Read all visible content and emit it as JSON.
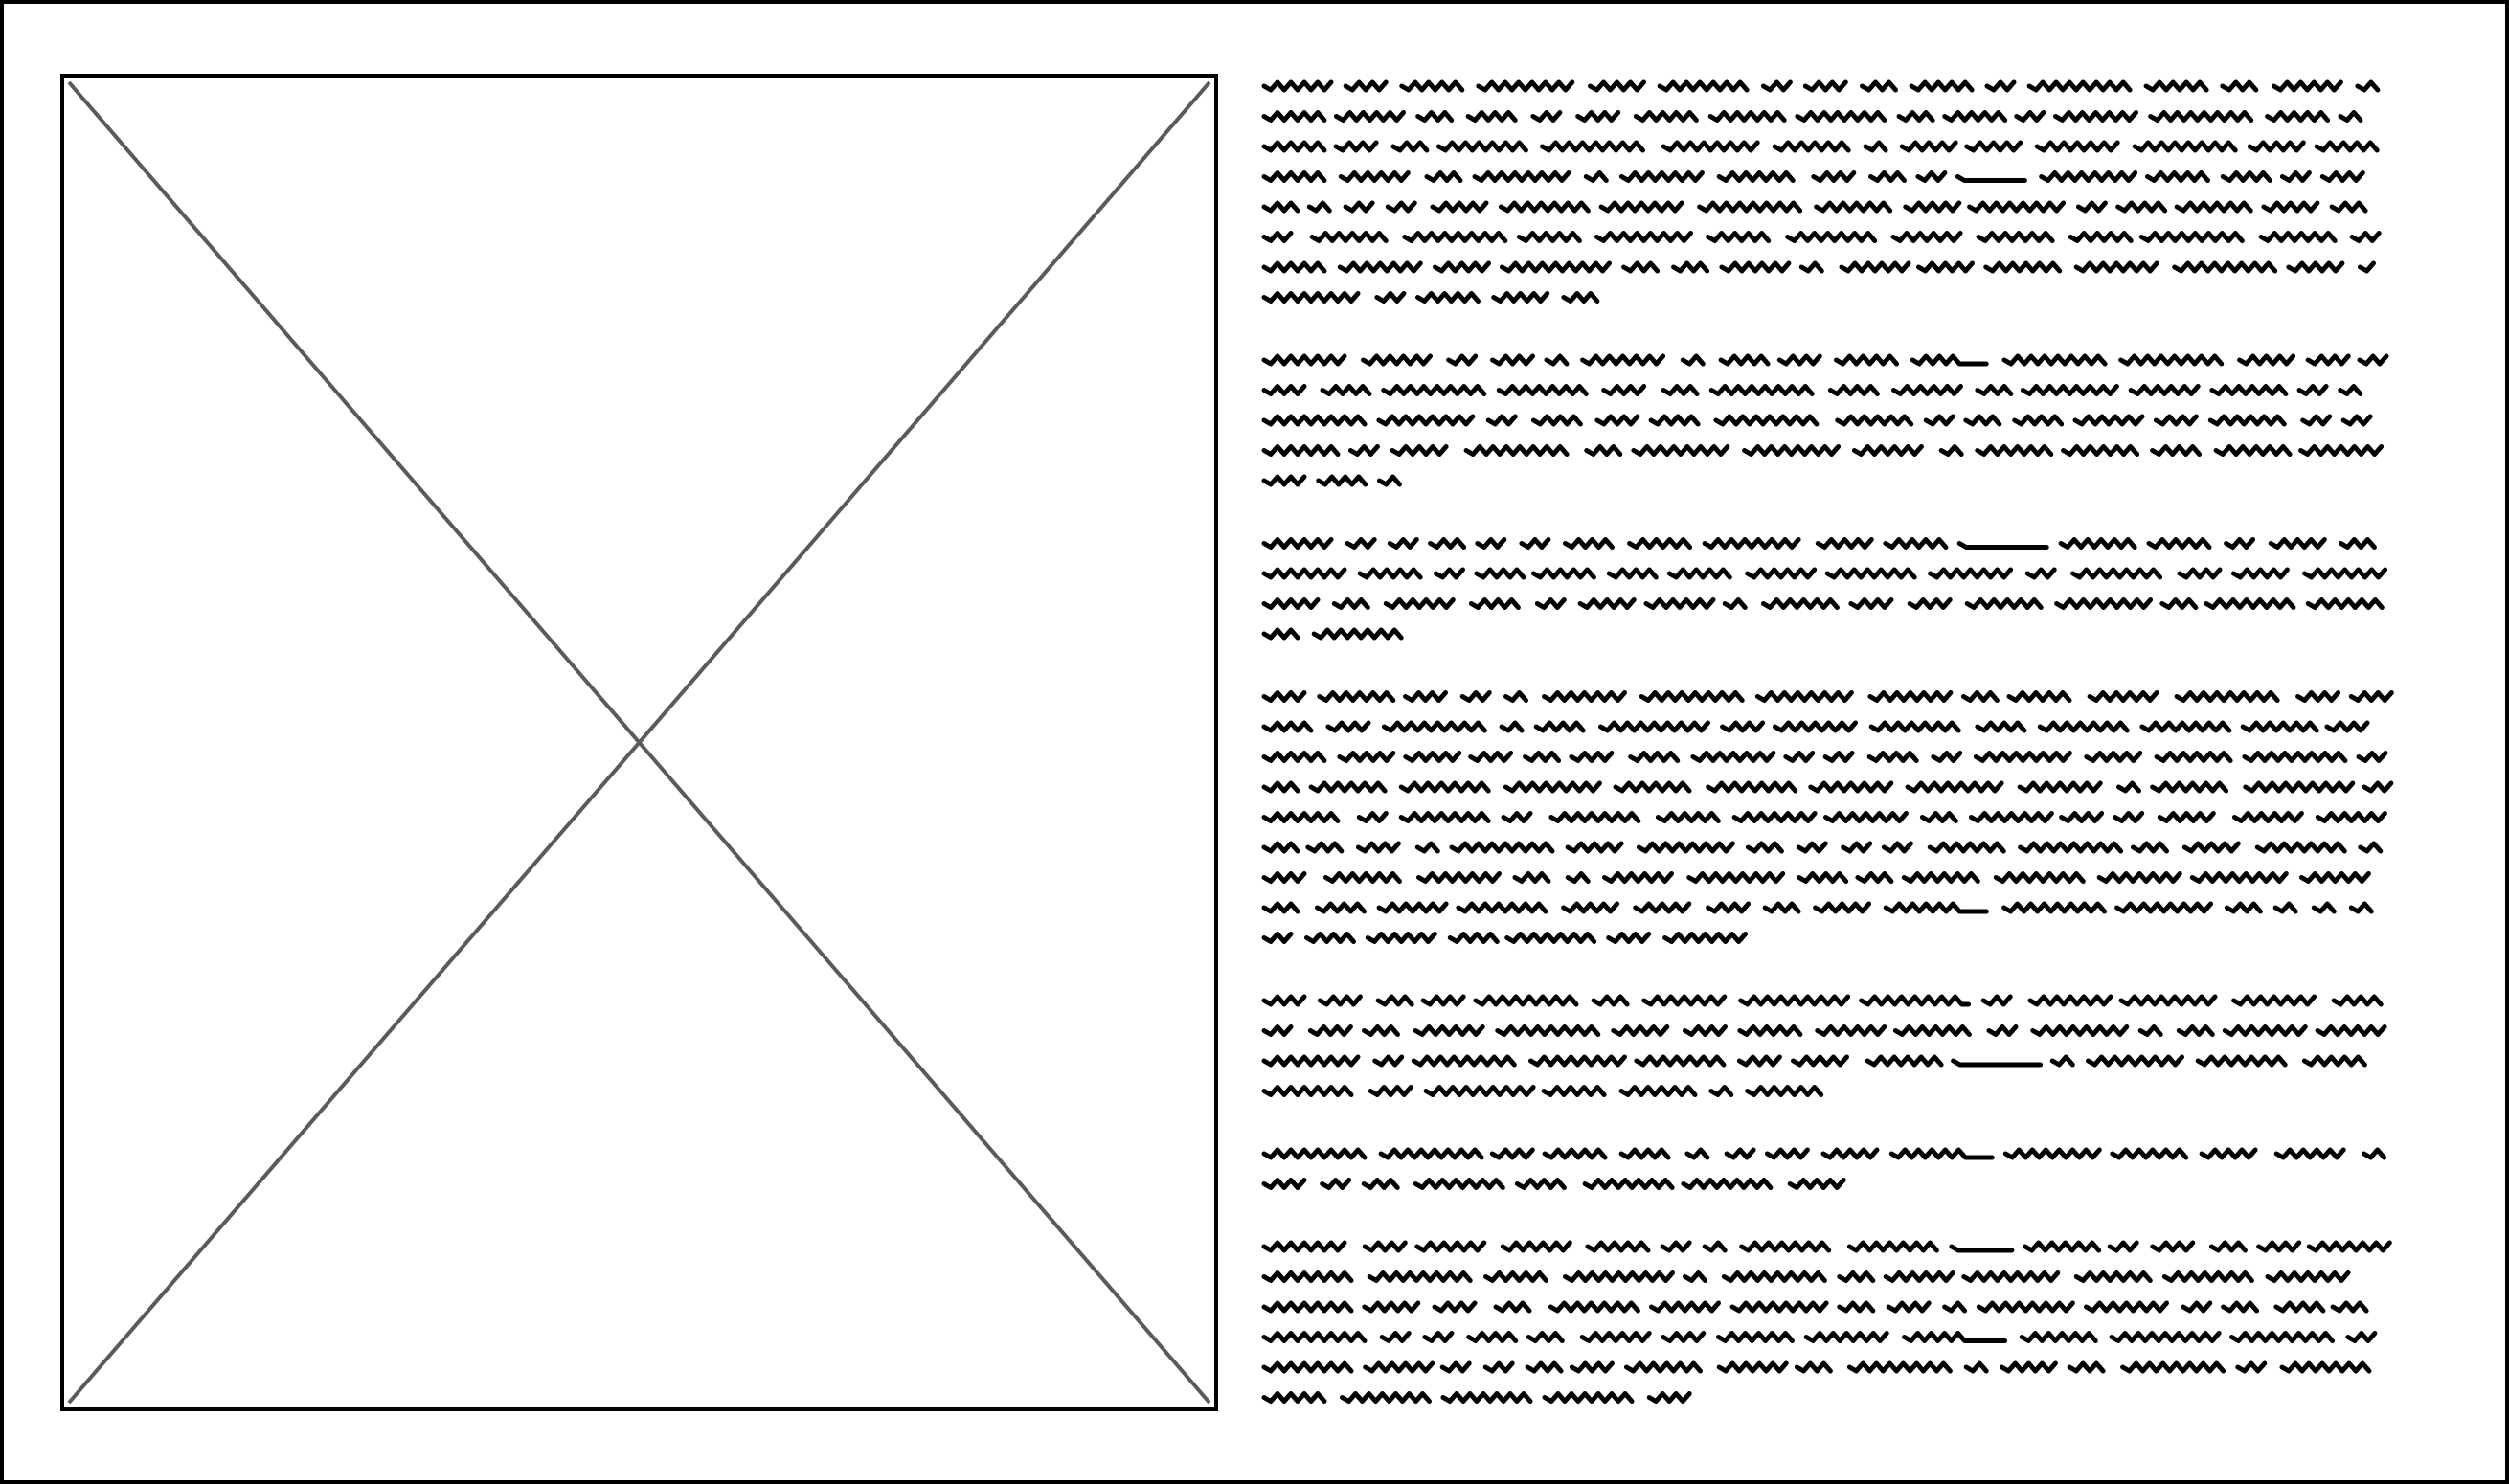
{
  "wireframe": {
    "image_placeholder": {
      "icon": "crossed-box-placeholder"
    },
    "text_block": {
      "paragraph_line_counts": [
        8,
        5,
        4,
        9,
        4,
        2,
        6
      ]
    },
    "colors": {
      "frame_border": "#000000",
      "placeholder_border": "#000000",
      "placeholder_cross": "#5a5a5a",
      "scribble": "#000000",
      "background": "#ffffff"
    }
  }
}
